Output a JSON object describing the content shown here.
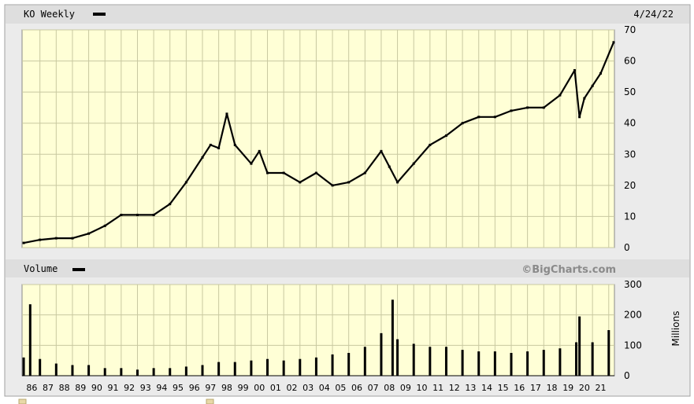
{
  "chart_data": [
    {
      "type": "line",
      "title": "KO Weekly",
      "date": "4/24/22",
      "ylim": [
        0,
        70
      ],
      "yticks": [
        "0",
        "10",
        "20",
        "30",
        "40",
        "50",
        "60",
        "70"
      ],
      "grid": true,
      "x": [
        1986,
        1987,
        1988,
        1989,
        1990,
        1991,
        1992,
        1993,
        1994,
        1995,
        1996,
        1997,
        1997.5,
        1998,
        1998.5,
        1999,
        2000,
        2000.5,
        2001,
        2002,
        2003,
        2004,
        2005,
        2006,
        2007,
        2008,
        2008.5,
        2009,
        2010,
        2011,
        2012,
        2013,
        2014,
        2015,
        2016,
        2017,
        2018,
        2019,
        2019.9,
        2020.2,
        2020.5,
        2021,
        2021.5,
        2022.3
      ],
      "series": [
        {
          "values": [
            1.5,
            2.5,
            3,
            3,
            4.5,
            7,
            10.5,
            10.5,
            10.5,
            14,
            21,
            29,
            33,
            32,
            43,
            33,
            27,
            31,
            24,
            24,
            21,
            24,
            20,
            21,
            24,
            31,
            26,
            21,
            27,
            33,
            36,
            40,
            42,
            42,
            44,
            45,
            45,
            49,
            57,
            42,
            48,
            52,
            56,
            66
          ]
        }
      ]
    },
    {
      "type": "bar",
      "title": "Volume",
      "ylabel": "Millions",
      "ylim": [
        0,
        300
      ],
      "yticks": [
        "0",
        "100",
        "200",
        "300"
      ],
      "grid": true,
      "x": [
        1986,
        1986.4,
        1987,
        1988,
        1989,
        1990,
        1991,
        1992,
        1993,
        1994,
        1995,
        1996,
        1997,
        1998,
        1999,
        2000,
        2001,
        2002,
        2003,
        2004,
        2005,
        2006,
        2007,
        2008,
        2008.7,
        2009,
        2010,
        2011,
        2012,
        2013,
        2014,
        2015,
        2016,
        2017,
        2018,
        2019,
        2020,
        2020.2,
        2021,
        2022
      ],
      "values": [
        60,
        235,
        55,
        40,
        35,
        35,
        25,
        25,
        20,
        25,
        25,
        30,
        35,
        45,
        45,
        50,
        55,
        50,
        55,
        60,
        70,
        75,
        95,
        140,
        250,
        120,
        105,
        95,
        95,
        85,
        80,
        80,
        75,
        80,
        85,
        90,
        110,
        195,
        110,
        150
      ]
    }
  ],
  "source_watermark": "©BigCharts.com",
  "xticks": [
    "86",
    "87",
    "88",
    "89",
    "90",
    "91",
    "92",
    "93",
    "94",
    "95",
    "96",
    "97",
    "98",
    "99",
    "00",
    "01",
    "02",
    "03",
    "04",
    "05",
    "06",
    "07",
    "08",
    "09",
    "10",
    "11",
    "12",
    "13",
    "14",
    "15",
    "16",
    "17",
    "18",
    "19",
    "20",
    "21"
  ],
  "colors": {
    "plot_bg": "#ffffd6",
    "grid": "#c8c8a0",
    "header_bg": "#dedede",
    "data": "#000000"
  }
}
